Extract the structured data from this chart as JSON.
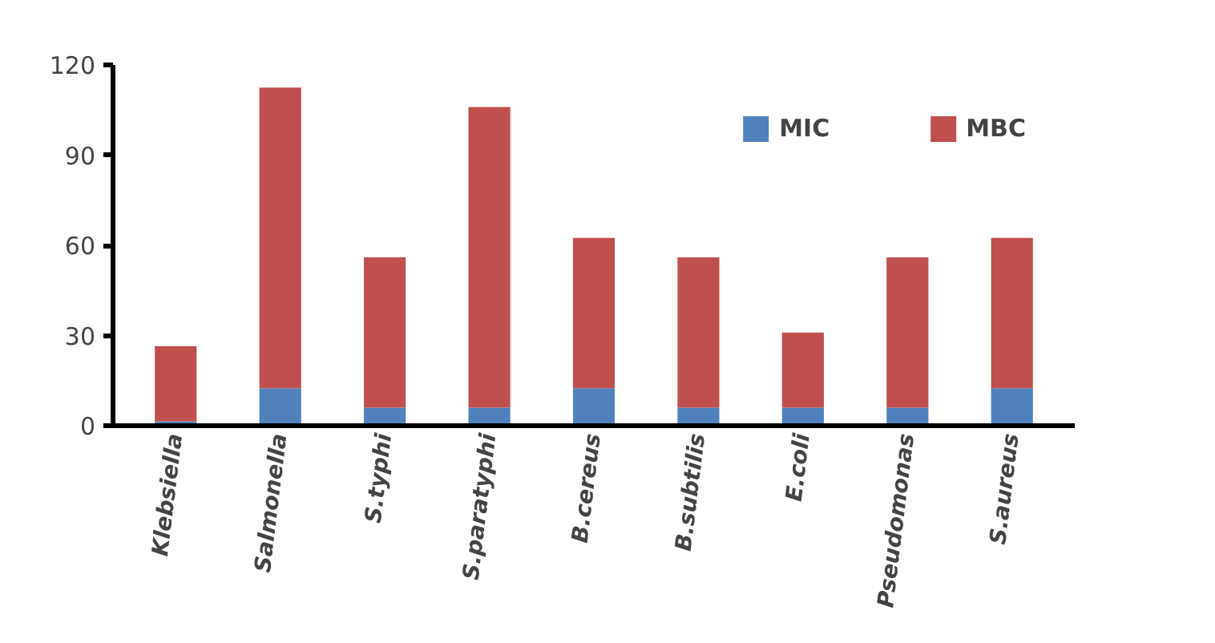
{
  "chart_data": {
    "type": "bar",
    "stacked": true,
    "categories": [
      "Klebsiella",
      "Salmonella",
      "S.typhi",
      "S.paratyphi",
      "B.cereus",
      "B.subtilis",
      "E.coli",
      "Pseudomonas",
      "S.aureus"
    ],
    "series": [
      {
        "name": "MIC",
        "color": "#4f81bd",
        "values": [
          1.5,
          12.5,
          6,
          6,
          12.5,
          6,
          6,
          6,
          12.5
        ]
      },
      {
        "name": "MBC",
        "color": "#c0504d",
        "values": [
          25,
          100,
          50,
          100,
          50,
          50,
          25,
          50,
          50
        ]
      }
    ],
    "ylim": [
      0,
      120
    ],
    "yticks": [
      0,
      30,
      60,
      90,
      120
    ],
    "grid": false,
    "legend": "top right"
  }
}
